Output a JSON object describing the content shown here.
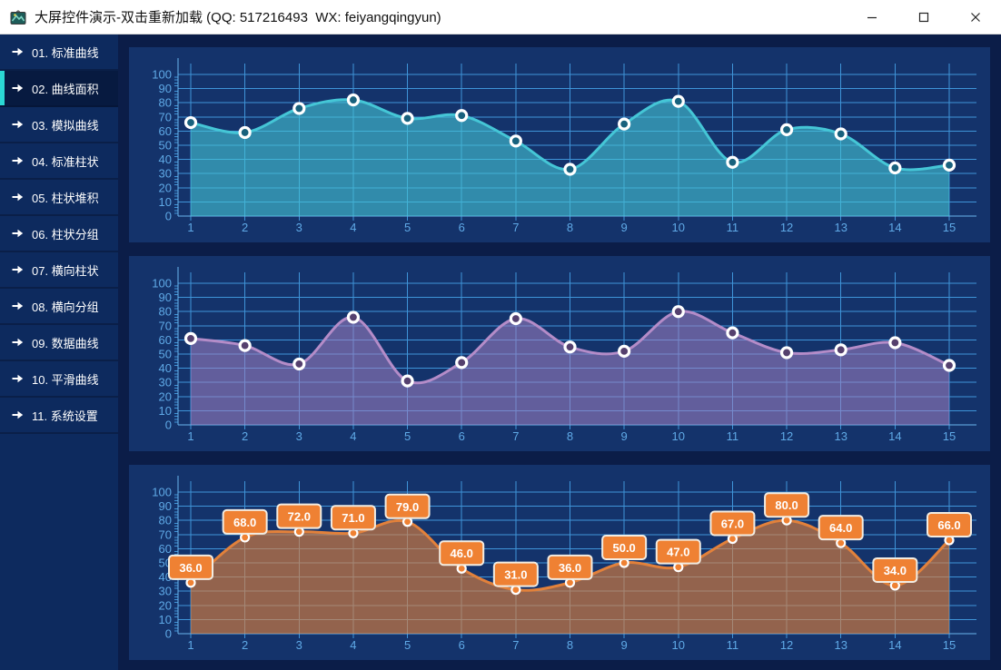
{
  "window": {
    "title": "大屏控件演示-双击重新加载 (QQ: 517216493  WX: feiyangqingyun)",
    "controls": [
      {
        "name": "minimize"
      },
      {
        "name": "maximize"
      },
      {
        "name": "close"
      }
    ]
  },
  "sidebar": {
    "active_index": 1,
    "accent_color": "#2bd8d4",
    "items": [
      {
        "label": "01. 标准曲线"
      },
      {
        "label": "02. 曲线面积"
      },
      {
        "label": "03. 模拟曲线"
      },
      {
        "label": "04. 标准柱状"
      },
      {
        "label": "05. 柱状堆积"
      },
      {
        "label": "06. 柱状分组"
      },
      {
        "label": "07. 横向柱状"
      },
      {
        "label": "08. 横向分组"
      },
      {
        "label": "09. 数据曲线"
      },
      {
        "label": "10. 平滑曲线"
      },
      {
        "label": "11. 系统设置"
      }
    ]
  },
  "theme": {
    "window_bg": "#0b1d48",
    "sidebar_bg": "#0d2a5e",
    "panel_bg": "#14336b",
    "grid_color": "#3f94d8",
    "axis_color": "#6ab4ec",
    "tick_label_color": "#5fa9e6",
    "titlebar_bg": "#ffffff",
    "titlebar_text": "#111111"
  },
  "chart_data": [
    {
      "type": "area",
      "x": [
        1,
        2,
        3,
        4,
        5,
        6,
        7,
        8,
        9,
        10,
        11,
        12,
        13,
        14,
        15
      ],
      "values": [
        66,
        59,
        76,
        82,
        69,
        71,
        53,
        33,
        65,
        81,
        38,
        61,
        58,
        34,
        36
      ],
      "ylim": [
        0,
        100
      ],
      "yticks": [
        0,
        10,
        20,
        30,
        40,
        50,
        60,
        70,
        80,
        90,
        100
      ],
      "line_color": "#45c6d6",
      "fill_color": "rgba(69,198,214,0.6)",
      "marker_center_color": "#18617d",
      "point_labels": null
    },
    {
      "type": "area",
      "x": [
        1,
        2,
        3,
        4,
        5,
        6,
        7,
        8,
        9,
        10,
        11,
        12,
        13,
        14,
        15
      ],
      "values": [
        61,
        56,
        43,
        76,
        31,
        44,
        75,
        55,
        52,
        80,
        65,
        51,
        53,
        58,
        42
      ],
      "ylim": [
        0,
        100
      ],
      "yticks": [
        0,
        10,
        20,
        30,
        40,
        50,
        60,
        70,
        80,
        90,
        100
      ],
      "line_color": "#b48cc8",
      "fill_color": "rgba(163,130,196,0.55)",
      "marker_center_color": "#55406e",
      "point_labels": null
    },
    {
      "type": "area",
      "x": [
        1,
        2,
        3,
        4,
        5,
        6,
        7,
        8,
        9,
        10,
        11,
        12,
        13,
        14,
        15
      ],
      "values": [
        36,
        68,
        72,
        71,
        79,
        46,
        31,
        36,
        50,
        47,
        67,
        80,
        64,
        34,
        66
      ],
      "ylim": [
        0,
        100
      ],
      "yticks": [
        0,
        10,
        20,
        30,
        40,
        50,
        60,
        70,
        80,
        90,
        100
      ],
      "line_color": "#e2813b",
      "fill_color": "rgba(226,129,59,0.62)",
      "marker_center_color": "#ef8133",
      "label_bg": "#ef8133",
      "point_labels": [
        "36.0",
        "68.0",
        "72.0",
        "71.0",
        "79.0",
        "46.0",
        "31.0",
        "36.0",
        "50.0",
        "47.0",
        "67.0",
        "80.0",
        "64.0",
        "34.0",
        "66.0"
      ]
    }
  ]
}
